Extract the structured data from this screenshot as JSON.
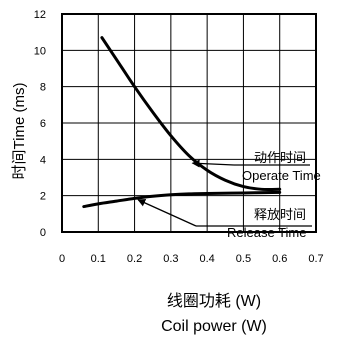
{
  "chart_data": {
    "type": "line",
    "title": "",
    "xlabel_cn": "线圈功耗 (W)",
    "xlabel_en": "Coil power (W)",
    "ylabel": "时间Time (ms)",
    "xlim": [
      0.0,
      0.7
    ],
    "ylim": [
      0,
      12
    ],
    "x_ticks": [
      "0",
      "0.1",
      "0.2",
      "0.3",
      "0.4",
      "0.5",
      "0.6",
      "0.7"
    ],
    "y_ticks": [
      "0",
      "2",
      "4",
      "6",
      "8",
      "10",
      "12"
    ],
    "grid": true,
    "series": [
      {
        "name": "Operate Time",
        "name_cn": "动作时间",
        "color": "#000000",
        "points": [
          [
            0.11,
            10.7
          ],
          [
            0.15,
            9.5
          ],
          [
            0.2,
            8.0
          ],
          [
            0.25,
            6.6
          ],
          [
            0.3,
            5.3
          ],
          [
            0.35,
            4.2
          ],
          [
            0.4,
            3.4
          ],
          [
            0.45,
            2.85
          ],
          [
            0.5,
            2.5
          ],
          [
            0.55,
            2.35
          ],
          [
            0.6,
            2.35
          ]
        ]
      },
      {
        "name": "Release Time",
        "name_cn": "释放时间",
        "color": "#000000",
        "points": [
          [
            0.06,
            1.4
          ],
          [
            0.1,
            1.55
          ],
          [
            0.15,
            1.7
          ],
          [
            0.2,
            1.85
          ],
          [
            0.25,
            1.97
          ],
          [
            0.3,
            2.05
          ],
          [
            0.35,
            2.1
          ],
          [
            0.4,
            2.12
          ],
          [
            0.5,
            2.15
          ],
          [
            0.6,
            2.18
          ]
        ]
      }
    ],
    "annotations": [
      {
        "cn": "动作时间",
        "en": "Operate Time"
      },
      {
        "cn": "释放时间",
        "en": "Release Time"
      }
    ]
  }
}
